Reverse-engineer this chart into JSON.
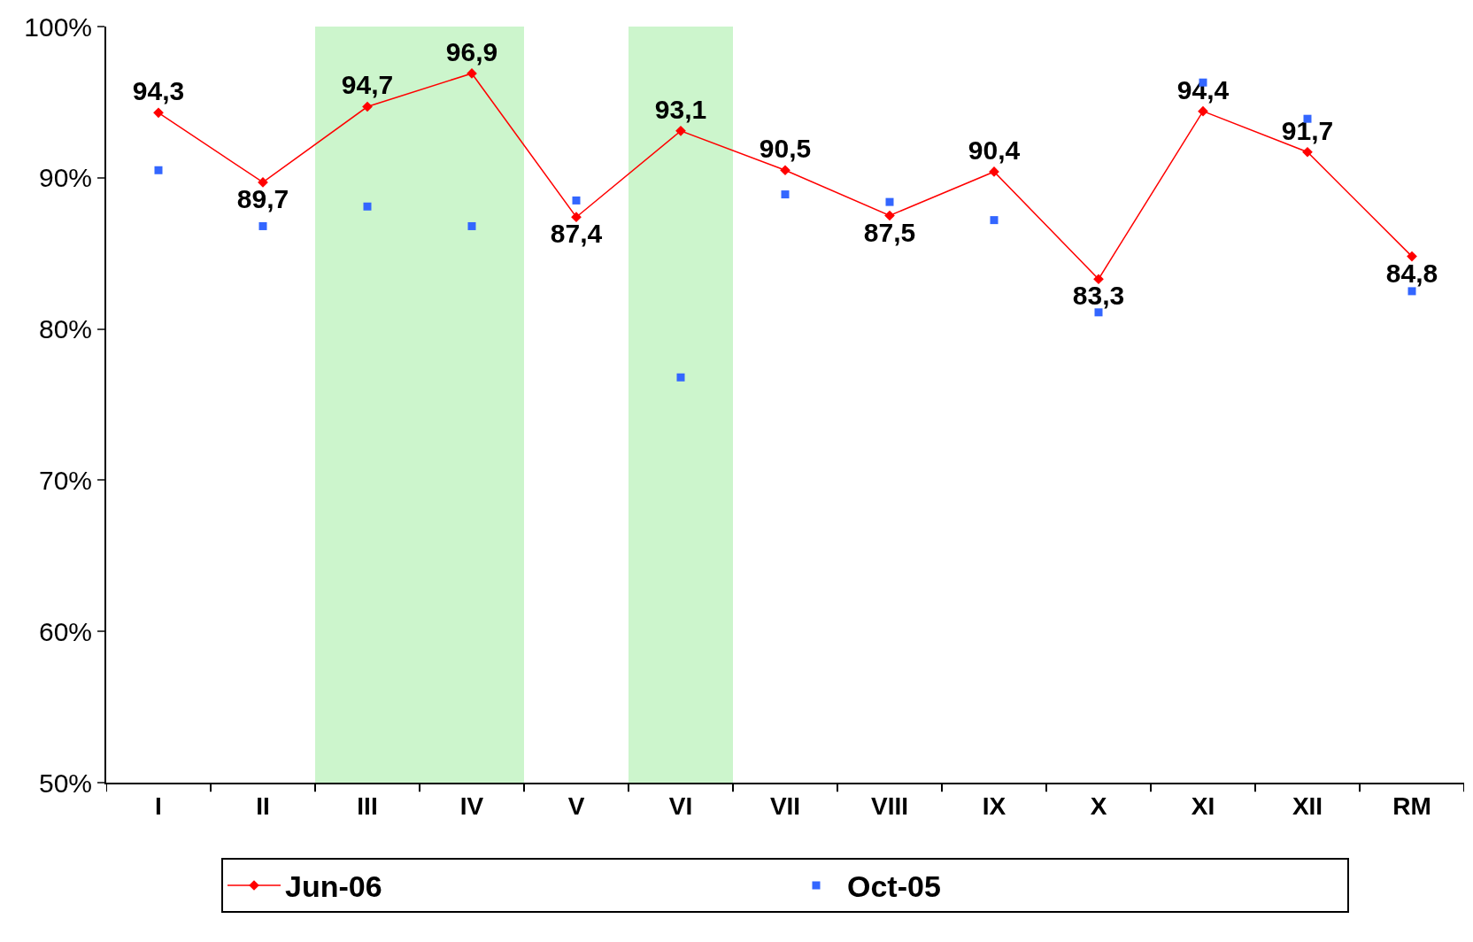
{
  "chart_data": {
    "type": "line",
    "categories": [
      "I",
      "II",
      "III",
      "IV",
      "V",
      "VI",
      "VII",
      "VIII",
      "IX",
      "X",
      "XI",
      "XII",
      "RM"
    ],
    "series": [
      {
        "name": "Jun-06",
        "type": "line",
        "color": "#ff0000",
        "marker": "diamond",
        "line_style": "solid",
        "values": [
          94.3,
          89.7,
          94.7,
          96.9,
          87.4,
          93.1,
          90.5,
          87.5,
          90.4,
          83.3,
          94.4,
          91.7,
          84.8
        ],
        "value_labels": [
          "94,3",
          "89,7",
          "94,7",
          "96,9",
          "87,4",
          "93,1",
          "90,5",
          "87,5",
          "90,4",
          "83,3",
          "94,4",
          "91,7",
          "84,8"
        ]
      },
      {
        "name": "Oct-05",
        "type": "scatter",
        "color": "#3366ff",
        "marker": "square",
        "values": [
          90.5,
          86.8,
          88.1,
          86.8,
          88.5,
          76.8,
          88.9,
          88.4,
          87.2,
          81.1,
          96.3,
          93.9,
          82.5
        ]
      }
    ],
    "ylim": [
      50,
      100
    ],
    "yticks": [
      {
        "value": 50,
        "label": "50%"
      },
      {
        "value": 60,
        "label": "60%"
      },
      {
        "value": 70,
        "label": "70%"
      },
      {
        "value": 80,
        "label": "80%"
      },
      {
        "value": 90,
        "label": "90%"
      },
      {
        "value": 100,
        "label": "100%"
      }
    ],
    "bands": [
      {
        "axis": "x",
        "from": "III",
        "to": "IV",
        "color": "#ccf5cc"
      },
      {
        "axis": "x",
        "from": "VI",
        "to": "VI",
        "color": "#ccf5cc"
      }
    ],
    "grid": false,
    "legend": "bottom"
  }
}
